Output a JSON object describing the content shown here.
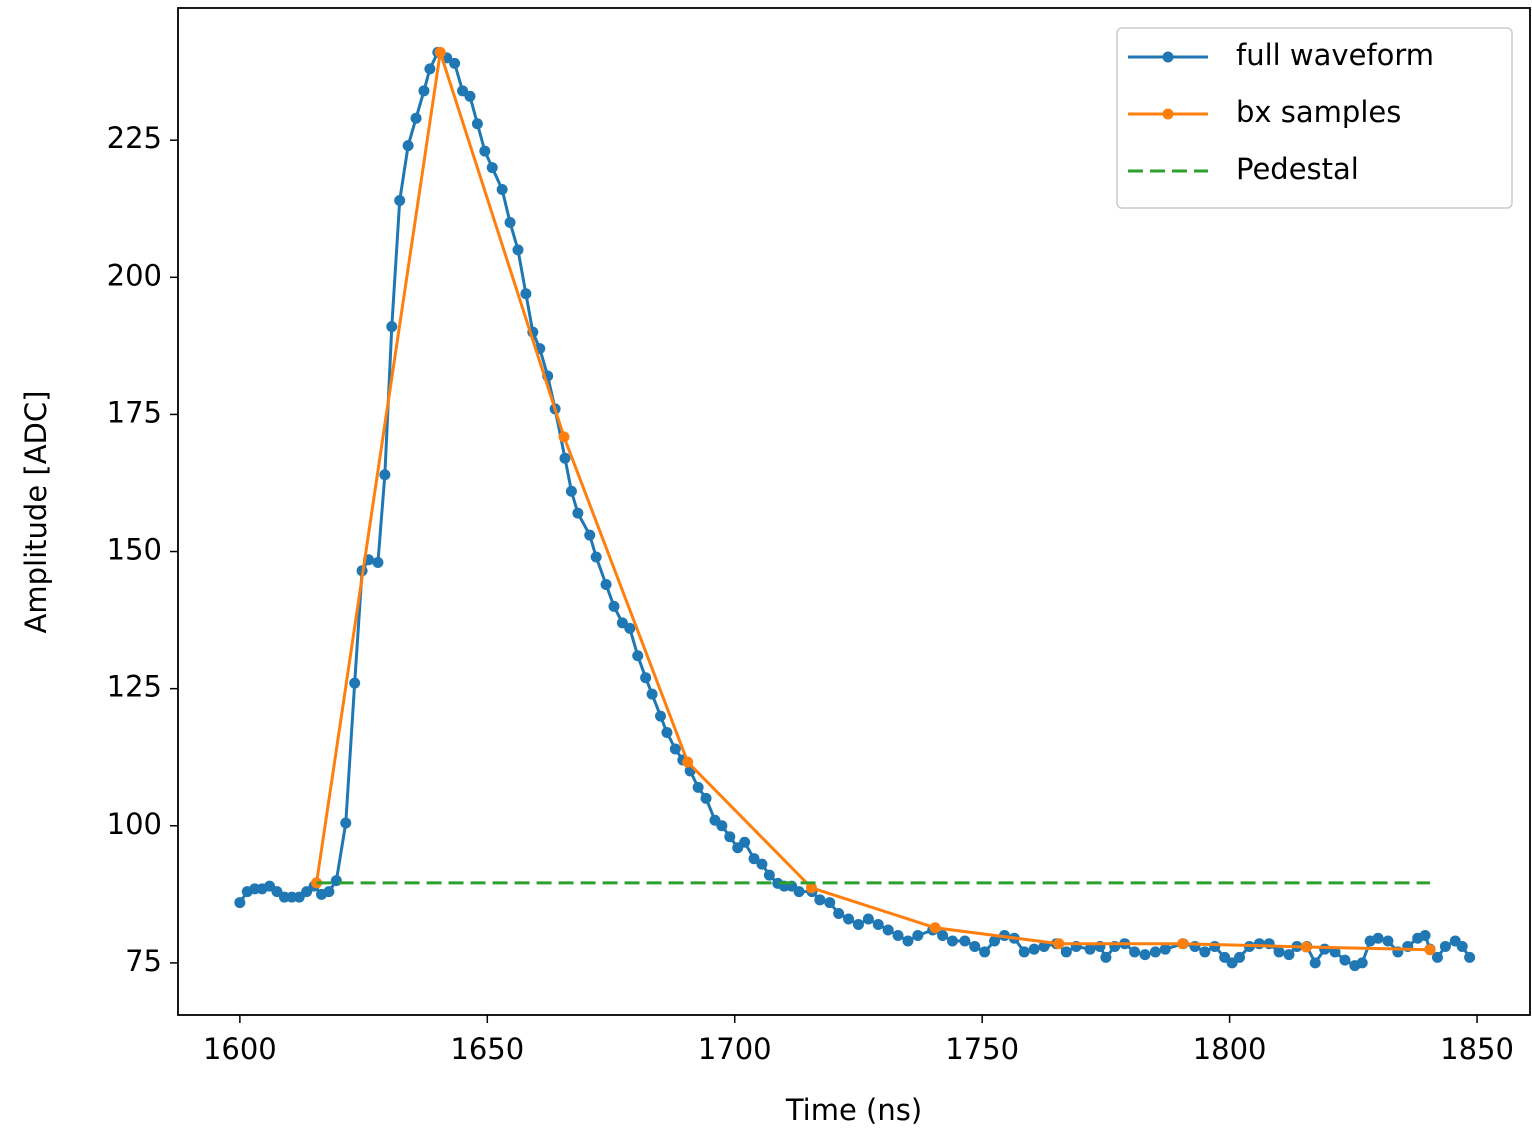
{
  "chart_data": {
    "type": "line",
    "xlabel": "Time (ns)",
    "ylabel": "Amplitude [ADC]",
    "xlim": [
      1587.5,
      1860.7
    ],
    "ylim": [
      65.5,
      249.1
    ],
    "xticks": [
      1600,
      1650,
      1700,
      1750,
      1800,
      1850
    ],
    "yticks": [
      75,
      100,
      125,
      150,
      175,
      200,
      225
    ],
    "grid": false,
    "legend": "upper right",
    "series": [
      {
        "name": "full waveform",
        "color": "#1f77b4",
        "linestyle": "solid",
        "marker": true,
        "x": [
          1600,
          1601.5,
          1603,
          1604.5,
          1606,
          1607.5,
          1609,
          1610.5,
          1612,
          1613.5,
          1615,
          1616.5,
          1618,
          1619.5,
          1621.4,
          1623.2,
          1624.7,
          1626,
          1627.9,
          1629.3,
          1630.7,
          1632.3,
          1634,
          1635.6,
          1637.2,
          1638.4,
          1640,
          1641.8,
          1643.4,
          1645,
          1646.5,
          1648,
          1649.5,
          1651,
          1653,
          1654.6,
          1656.2,
          1657.8,
          1659.2,
          1660.6,
          1662.2,
          1663.7,
          1665.7,
          1667,
          1668.3,
          1670.7,
          1672,
          1674,
          1675.6,
          1677.3,
          1678.8,
          1680.4,
          1682,
          1683.3,
          1685,
          1686.3,
          1688,
          1689.5,
          1691,
          1692.6,
          1694.2,
          1696,
          1697.4,
          1699,
          1700.6,
          1702,
          1703.9,
          1705.5,
          1707,
          1708.7,
          1710,
          1711.5,
          1713,
          1715.6,
          1717.2,
          1719.2,
          1721,
          1723,
          1725,
          1727,
          1729,
          1731,
          1733,
          1735,
          1737,
          1740,
          1742,
          1744,
          1746.5,
          1748.5,
          1750.5,
          1752.5,
          1754.5,
          1756.5,
          1758.5,
          1760.5,
          1762.5,
          1765,
          1767,
          1769,
          1771.8,
          1773.8,
          1775,
          1776.8,
          1778.8,
          1780.8,
          1782.9,
          1785,
          1787,
          1790.6,
          1793,
          1795,
          1797,
          1799,
          1800.5,
          1802,
          1804,
          1806,
          1808,
          1810,
          1812,
          1813.6,
          1815.6,
          1817.3,
          1819.2,
          1821.3,
          1823.3,
          1825.3,
          1826.8,
          1828.4,
          1830,
          1832,
          1834,
          1836,
          1838,
          1839.5,
          1840.5,
          1842,
          1843.6,
          1845.6,
          1847,
          1848.5
        ],
        "values": [
          86,
          88,
          88.5,
          88.5,
          89,
          88,
          87,
          87,
          87,
          88,
          89,
          87.5,
          88,
          90,
          100.5,
          126,
          146.5,
          148.5,
          148,
          164,
          191,
          214,
          224,
          229,
          234,
          238,
          241,
          240,
          239,
          234,
          233,
          228,
          223,
          220,
          216,
          210,
          205,
          197,
          190,
          187,
          182,
          176,
          167,
          161,
          157,
          153,
          149,
          144,
          140,
          137,
          136,
          131,
          127,
          124,
          120,
          117,
          114,
          112,
          110,
          107,
          105,
          101,
          100,
          98,
          96,
          97,
          94,
          93,
          91,
          89.5,
          89,
          89,
          88,
          88,
          86.5,
          86,
          84,
          83,
          82,
          83,
          82,
          81,
          80,
          79,
          80,
          81,
          80,
          79,
          79,
          78,
          77,
          79,
          80,
          79.5,
          77,
          77.5,
          78,
          78.5,
          77,
          78,
          77.5,
          78,
          76,
          78,
          78.5,
          77,
          76.5,
          77,
          77.5,
          78.5,
          78,
          77,
          78,
          76,
          75,
          76,
          78,
          78.5,
          78.5,
          77,
          76.5,
          78,
          78,
          75,
          77.5,
          77,
          75.5,
          74.5,
          75,
          79,
          79.5,
          79,
          77,
          78,
          79.5,
          80,
          77.5,
          76,
          78,
          79,
          78,
          76
        ]
      },
      {
        "name": "bx samples",
        "color": "#ff7f0e",
        "linestyle": "solid",
        "marker": true,
        "x": [
          1615.5,
          1640.5,
          1665.5,
          1690.5,
          1715.5,
          1740.5,
          1765.5,
          1790.5,
          1815.5,
          1840.5
        ],
        "values": [
          89.6,
          241.0,
          170.9,
          111.6,
          88.7,
          81.4,
          78.5,
          78.5,
          77.9,
          77.4
        ]
      },
      {
        "name": "Pedestal",
        "color": "#2ca02c",
        "linestyle": "dashed",
        "marker": false,
        "x": [
          1615.5,
          1840.5
        ],
        "values": [
          89.6,
          89.6
        ]
      }
    ]
  }
}
